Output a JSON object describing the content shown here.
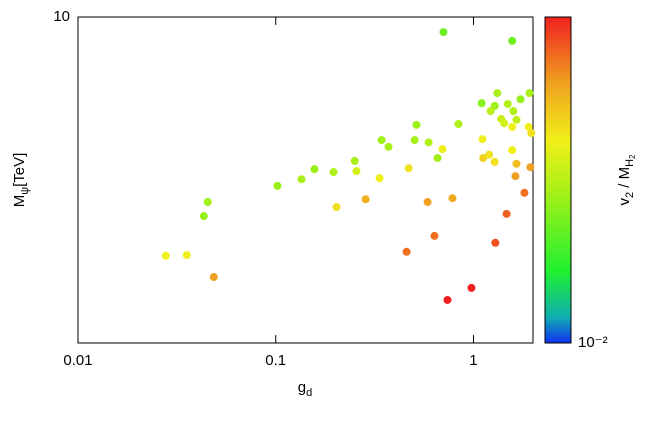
{
  "chart_data": {
    "type": "scatter",
    "xlabel": {
      "text": "g",
      "sub": "d"
    },
    "ylabel": {
      "text": "M",
      "sub": "ψ",
      "suffix": "[TeV]"
    },
    "xscale": "log",
    "yscale": "log",
    "xlim": [
      0.01,
      2
    ],
    "ylim": [
      3.3,
      10
    ],
    "xticks": [
      0.01,
      0.1,
      1
    ],
    "yticks": [
      10
    ],
    "x": [
      0.705,
      1.57,
      1.32,
      1.92,
      1.1,
      1.73,
      1.49,
      1.28,
      1.22,
      1.59,
      1.38,
      1.43,
      1.65,
      1.9,
      1.96,
      1.57,
      0.84,
      0.515,
      0.343,
      0.372,
      0.504,
      0.593,
      0.697,
      1.11,
      1.12,
      1.2,
      1.28,
      1.57,
      1.63,
      1.65,
      1.94,
      0.658,
      0.251,
      0.256,
      0.157,
      0.196,
      0.135,
      0.335,
      0.47,
      0.102,
      0.203,
      0.285,
      0.586,
      0.783,
      1.81,
      0.0453,
      0.0433,
      0.635,
      1.47,
      1.29,
      0.459,
      0.0355,
      0.0278,
      0.0486,
      0.977,
      0.739
    ],
    "values": [
      9.5,
      9.22,
      7.72,
      7.72,
      7.46,
      7.56,
      7.44,
      7.39,
      7.26,
      7.26,
      7.07,
      6.97,
      7.05,
      6.88,
      6.74,
      6.88,
      6.95,
      6.93,
      6.58,
      6.43,
      6.58,
      6.53,
      6.38,
      6.6,
      6.19,
      6.26,
      6.11,
      6.36,
      5.82,
      6.07,
      6.0,
      6.19,
      6.13,
      5.92,
      5.96,
      5.9,
      5.76,
      5.78,
      5.98,
      5.63,
      5.24,
      5.38,
      5.33,
      5.4,
      5.5,
      5.33,
      5.08,
      4.75,
      5.12,
      4.64,
      4.5,
      4.45,
      4.44,
      4.13,
      3.98,
      3.82
    ],
    "point_colors": [
      "#6ef020",
      "#6ef020",
      "#a8f018",
      "#a8f018",
      "#88f01c",
      "#98f01a",
      "#b0f018",
      "#a0f018",
      "#b8f018",
      "#b0f018",
      "#c8f018",
      "#d0f018",
      "#c0f018",
      "#f0f018",
      "#f0e020",
      "#f0f018",
      "#b0f018",
      "#a0f018",
      "#9ef018",
      "#a8f018",
      "#a8f018",
      "#b0f018",
      "#f0f018",
      "#f0f020",
      "#f0d020",
      "#f0e020",
      "#f0e020",
      "#f0f018",
      "#f0a020",
      "#f0c020",
      "#f0a020",
      "#a0f018",
      "#a8f018",
      "#d0f018",
      "#98f018",
      "#b0f018",
      "#a8f018",
      "#f0f018",
      "#f0e020",
      "#98f018",
      "#f0e020",
      "#f0b020",
      "#f0a020",
      "#f0a820",
      "#f07020",
      "#a0f018",
      "#98f018",
      "#f07020",
      "#f06020",
      "#f05020",
      "#f07020",
      "#f0f020",
      "#f0f020",
      "#f0a020",
      "#f02020",
      "#f02020"
    ],
    "colorbar": {
      "label": {
        "text": "v",
        "sub": "2",
        "mid": " / M",
        "sub2": "H",
        "subsub": "2"
      },
      "ticks": [
        {
          "value": 0.01,
          "label": "10⁻²"
        }
      ]
    }
  }
}
